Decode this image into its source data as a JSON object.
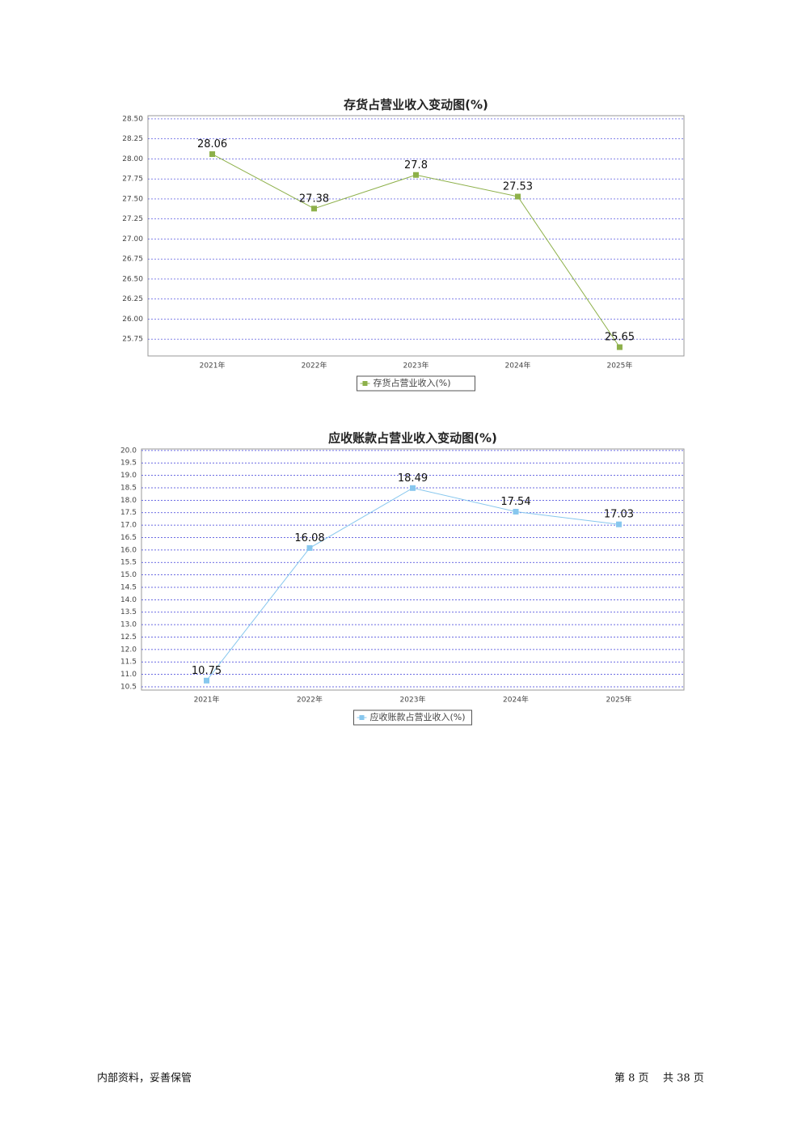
{
  "chart_data": [
    {
      "type": "line",
      "title": "存货占营业收入变动图(%)",
      "categories": [
        "2021年",
        "2022年",
        "2023年",
        "2024年",
        "2025年"
      ],
      "series": [
        {
          "name": "存货占营业收入(%)",
          "color": "#8db04a",
          "values": [
            28.06,
            27.38,
            27.8,
            27.53,
            25.65
          ]
        }
      ],
      "ylim": [
        25.54,
        28.54
      ],
      "yticks": [
        {
          "value": 28.5,
          "label": "28.50"
        },
        28.25,
        {
          "value": 28,
          "label": "28.00"
        },
        27.75,
        {
          "value": 27.5,
          "label": "27.50"
        },
        27.25,
        {
          "value": 27,
          "label": "27.00"
        },
        26.75,
        {
          "value": 26.5,
          "label": "26.50"
        },
        26.25,
        {
          "value": 26,
          "label": "26.00"
        },
        25.75
      ],
      "grid": true
    },
    {
      "type": "line",
      "title": "应收账款占营业收入变动图(%)",
      "categories": [
        "2021年",
        "2022年",
        "2023年",
        "2024年",
        "2025年"
      ],
      "series": [
        {
          "name": "应收账款占营业收入(%)",
          "color": "#87c7ee",
          "values": [
            10.75,
            16.08,
            18.49,
            17.54,
            17.03
          ]
        }
      ],
      "ylim": [
        10.37,
        20.06
      ],
      "yticks": [
        {
          "value": 20,
          "label": "20.0"
        },
        19.5,
        {
          "value": 19,
          "label": "19.0"
        },
        18.5,
        {
          "value": 18,
          "label": "18.0"
        },
        17.5,
        {
          "value": 17,
          "label": "17.0"
        },
        16.5,
        {
          "value": 16,
          "label": "16.0"
        },
        15.5,
        {
          "value": 15,
          "label": "15.0"
        },
        14.5,
        {
          "value": 14,
          "label": "14.0"
        },
        13.5,
        {
          "value": 13,
          "label": "13.0"
        },
        12.5,
        {
          "value": 12,
          "label": "12.0"
        },
        11.5,
        {
          "value": 11,
          "label": "11.0"
        },
        10.5
      ],
      "grid": true
    }
  ],
  "footer": {
    "left": "内部资料，妥善保管",
    "page": "第 8 页",
    "total": "共 38 页"
  }
}
